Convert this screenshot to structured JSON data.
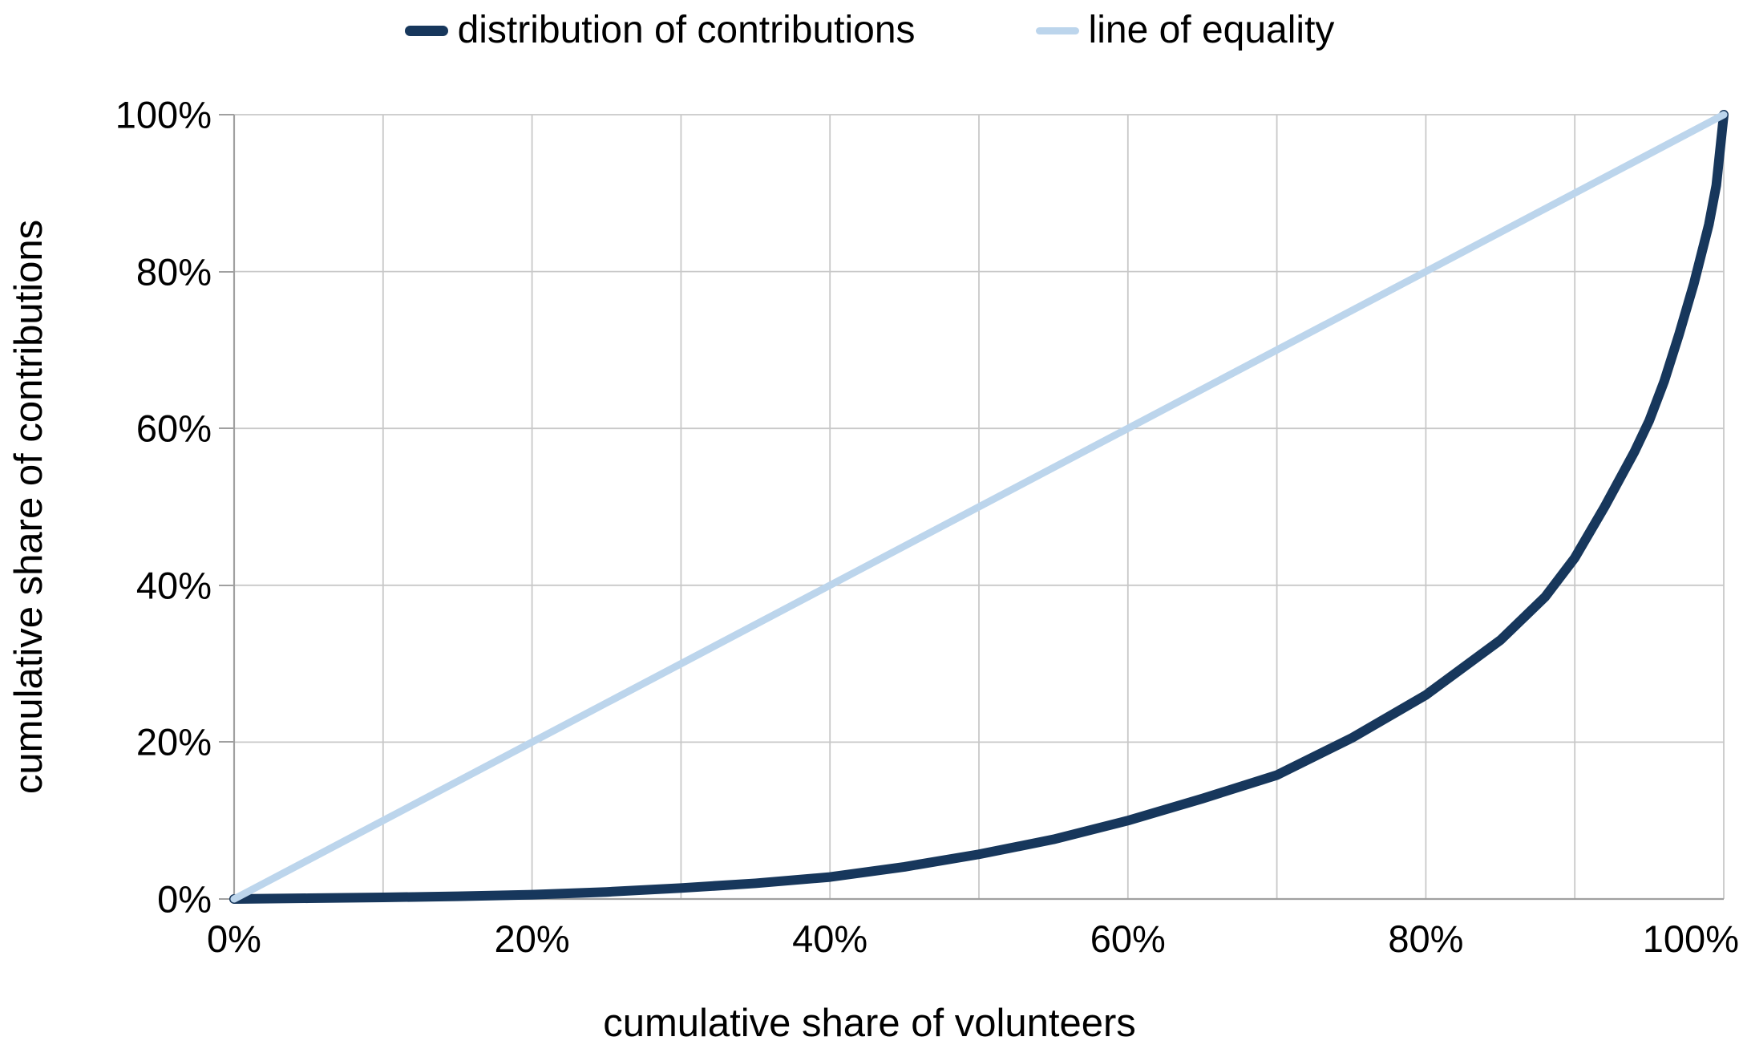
{
  "legend": {
    "items": [
      {
        "label": "distribution of contributions",
        "color": "#17375C",
        "thickness": 13
      },
      {
        "label": "line of equality",
        "color": "#BCD5EC",
        "thickness": 9
      }
    ]
  },
  "axes": {
    "x_title": "cumulative share of volunteers",
    "y_title": "cumulative share of contributions"
  },
  "styles": {
    "grid_color": "#C8C8C8",
    "axis_color": "#A0A0A0",
    "text_color": "#000000",
    "background": "#FFFFFF",
    "series_dark": "#17375C",
    "series_light": "#BCD5EC"
  },
  "chart_data": {
    "type": "line",
    "title": "",
    "xlabel": "cumulative share of volunteers",
    "ylabel": "cumulative share of contributions",
    "xlim": [
      0,
      100
    ],
    "ylim": [
      0,
      100
    ],
    "grid": "on",
    "legend_position": "top-center",
    "x_ticks": [
      {
        "value": 0,
        "label": "0%"
      },
      {
        "value": 20,
        "label": "20%"
      },
      {
        "value": 40,
        "label": "40%"
      },
      {
        "value": 60,
        "label": "60%"
      },
      {
        "value": 80,
        "label": "80%"
      },
      {
        "value": 100,
        "label": "100%"
      }
    ],
    "y_ticks": [
      {
        "value": 0,
        "label": "0%"
      },
      {
        "value": 20,
        "label": "20%"
      },
      {
        "value": 40,
        "label": "40%"
      },
      {
        "value": 60,
        "label": "60%"
      },
      {
        "value": 80,
        "label": "80%"
      },
      {
        "value": 100,
        "label": "100%"
      }
    ],
    "x_gridlines_pct": [
      10,
      20,
      30,
      40,
      50,
      60,
      70,
      80,
      90,
      100
    ],
    "y_gridlines_pct": [
      20,
      40,
      60,
      80,
      100
    ],
    "series": [
      {
        "name": "distribution of contributions",
        "color": "#17375C",
        "stroke_width": 12,
        "points": [
          [
            0,
            0
          ],
          [
            5,
            0.1
          ],
          [
            10,
            0.2
          ],
          [
            15,
            0.35
          ],
          [
            20,
            0.55
          ],
          [
            25,
            0.9
          ],
          [
            30,
            1.4
          ],
          [
            35,
            2.0
          ],
          [
            40,
            2.8
          ],
          [
            45,
            4.1
          ],
          [
            50,
            5.7
          ],
          [
            55,
            7.6
          ],
          [
            60,
            10.0
          ],
          [
            65,
            12.8
          ],
          [
            70,
            15.8
          ],
          [
            75,
            20.5
          ],
          [
            80,
            26.0
          ],
          [
            85,
            33.0
          ],
          [
            88,
            38.5
          ],
          [
            90,
            43.5
          ],
          [
            92,
            50.0
          ],
          [
            94,
            57.0
          ],
          [
            95,
            61.0
          ],
          [
            96,
            66.0
          ],
          [
            97,
            72.0
          ],
          [
            98,
            78.5
          ],
          [
            99,
            86.0
          ],
          [
            99.5,
            91.0
          ],
          [
            100,
            100
          ]
        ]
      },
      {
        "name": "line of equality",
        "color": "#BCD5EC",
        "stroke_width": 9,
        "points": [
          [
            0,
            0
          ],
          [
            100,
            100
          ]
        ]
      }
    ]
  }
}
